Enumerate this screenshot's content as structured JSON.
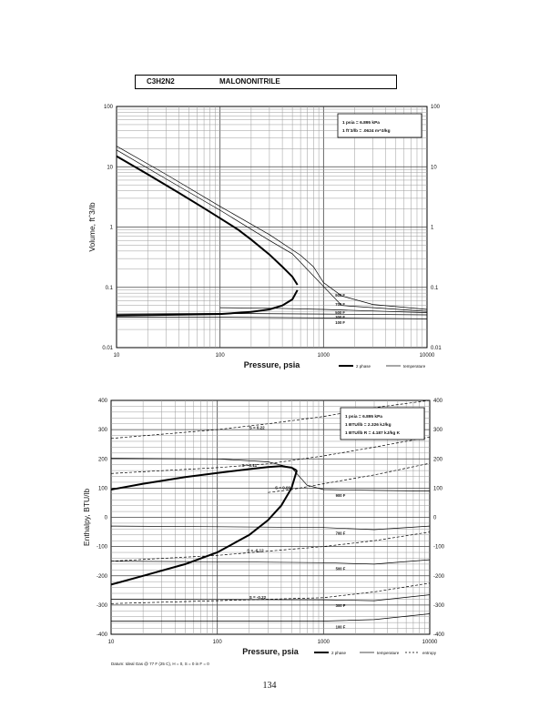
{
  "header": {
    "formula": "C3H2N2",
    "name": "MALONONITRILE"
  },
  "page_number": "134",
  "chart_data": [
    {
      "type": "line",
      "scale": "log-log",
      "xlabel": "Pressure,  psia",
      "ylabel": "Volume, ft^3/lb",
      "xlim": [
        10,
        10000
      ],
      "ylim": [
        0.01,
        100
      ],
      "x_ticks": [
        "10",
        "100",
        "1000",
        "10000"
      ],
      "y_ticks_left": [
        "0.01",
        "0.1",
        "1",
        "10",
        "100"
      ],
      "y_ticks_right": [
        "0.01",
        "0.1",
        "1",
        "10",
        "100"
      ],
      "grid": true,
      "conversion_box": {
        "position": "top-right",
        "lines": [
          "1 psia  =  6.895 kPa",
          "1 ft^3/lb  =  .0624 m^3/kg"
        ]
      },
      "legend": {
        "position": "bottom-right",
        "entries": [
          {
            "style": "thick",
            "label": "2 phase"
          },
          {
            "style": "thin",
            "label": "temperature"
          }
        ]
      },
      "two_phase": {
        "vapor": {
          "x": [
            10,
            20,
            40,
            70,
            100,
            150,
            200,
            300,
            400,
            500,
            560
          ],
          "y": [
            15,
            7.5,
            3.7,
            2.05,
            1.4,
            0.9,
            0.62,
            0.35,
            0.22,
            0.15,
            0.11
          ]
        },
        "liquid": {
          "x": [
            10,
            30,
            100,
            200,
            300,
            400,
            500,
            560
          ],
          "y": [
            0.034,
            0.035,
            0.036,
            0.039,
            0.043,
            0.05,
            0.063,
            0.09
          ]
        }
      },
      "isotherms": [
        {
          "label": "900 F",
          "x": [
            10,
            30,
            100,
            300,
            600,
            800,
            1000,
            1500,
            3000,
            10000
          ],
          "y": [
            22,
            7.5,
            2.2,
            0.75,
            0.34,
            0.22,
            0.12,
            0.072,
            0.052,
            0.043
          ]
        },
        {
          "label": "700 F",
          "x": [
            10,
            30,
            100,
            300,
            500,
            1500,
            10000
          ],
          "y": [
            19,
            6.3,
            1.9,
            0.6,
            0.36,
            0.05,
            0.04
          ]
        },
        {
          "label": "500 F",
          "x": [
            100,
            300,
            1000,
            10000
          ],
          "y": [
            0.046,
            0.045,
            0.043,
            0.038
          ]
        },
        {
          "label": "300 F",
          "x": [
            10,
            100,
            1000,
            10000
          ],
          "y": [
            0.036,
            0.037,
            0.036,
            0.035
          ]
        },
        {
          "label": "100 F",
          "x": [
            10,
            100,
            1000,
            10000
          ],
          "y": [
            0.032,
            0.032,
            0.031,
            0.03
          ]
        }
      ]
    },
    {
      "type": "line",
      "scale": "log-x",
      "xlabel": "Pressure,  psia",
      "ylabel": "Enthalpy, BTU/lb",
      "xlim": [
        10,
        10000
      ],
      "ylim": [
        -400,
        400
      ],
      "x_ticks": [
        "10",
        "100",
        "1000",
        "10000"
      ],
      "y_ticks_left": [
        "-400",
        "-300",
        "-200",
        "-100",
        "0",
        "100",
        "200",
        "300",
        "400"
      ],
      "y_ticks_right": [
        "-400",
        "-300",
        "-200",
        "-100",
        "0",
        "100",
        "200",
        "300",
        "400"
      ],
      "grid": true,
      "conversion_box": {
        "position": "top-right",
        "lines": [
          "1 psia  =  6.895 kPa",
          "1 BTU/lb  =  2.326 kJ/kg",
          "1 BTU/lb R  =  4.187 kJ/kg K"
        ]
      },
      "footnote": "Datum: Ideal Gas @ 77 F (25 C),  H = 0,  S = 0 in F = 0",
      "legend": {
        "position": "bottom-right",
        "entries": [
          {
            "style": "thick",
            "label": "2 phase"
          },
          {
            "style": "thin",
            "label": "temperature"
          },
          {
            "style": "dashed",
            "label": "entropy"
          }
        ]
      },
      "two_phase": {
        "vapor": {
          "x": [
            10,
            20,
            50,
            100,
            200,
            300,
            400,
            500,
            560
          ],
          "y": [
            95,
            115,
            138,
            152,
            165,
            172,
            175,
            170,
            160
          ]
        },
        "liquid": {
          "x": [
            10,
            20,
            50,
            100,
            200,
            300,
            400,
            500,
            560
          ],
          "y": [
            -230,
            -200,
            -160,
            -120,
            -60,
            -10,
            40,
            100,
            160
          ]
        }
      },
      "isotherms": [
        {
          "label": "900 F",
          "x": [
            10,
            100,
            300,
            500,
            700,
            1000,
            3000,
            10000
          ],
          "y": [
            202,
            200,
            190,
            170,
            110,
            95,
            92,
            90
          ]
        },
        {
          "label": "700 F",
          "x": [
            10,
            100,
            1000,
            3000,
            10000
          ],
          "y": [
            -30,
            -32,
            -35,
            -42,
            -30
          ]
        },
        {
          "label": "500 F",
          "x": [
            10,
            100,
            1000,
            3000,
            10000
          ],
          "y": [
            -150,
            -152,
            -155,
            -160,
            -145
          ]
        },
        {
          "label": "300 F",
          "x": [
            10,
            100,
            1000,
            3000,
            10000
          ],
          "y": [
            -280,
            -281,
            -282,
            -285,
            -265
          ]
        },
        {
          "label": "100 F",
          "x": [
            10,
            100,
            1000,
            3000,
            10000
          ],
          "y": [
            -355,
            -355,
            -355,
            -350,
            -330
          ]
        }
      ],
      "entropy_lines": [
        {
          "label": "S = 0.22",
          "x": [
            10,
            100,
            300,
            1000,
            3000,
            10000
          ],
          "y": [
            270,
            300,
            320,
            345,
            375,
            400
          ]
        },
        {
          "label": "S = 0.11",
          "x": [
            10,
            100,
            300,
            1000,
            3000,
            10000
          ],
          "y": [
            150,
            170,
            183,
            210,
            240,
            275
          ]
        },
        {
          "label": "S = 0.00",
          "x": [
            300,
            500,
            1000,
            3000,
            10000
          ],
          "y": [
            85,
            95,
            115,
            145,
            185
          ]
        },
        {
          "label": "S = -0.12",
          "x": [
            10,
            100,
            1000,
            3000,
            10000
          ],
          "y": [
            -150,
            -130,
            -100,
            -80,
            -50
          ]
        },
        {
          "label": "S = -0.22",
          "x": [
            10,
            100,
            1000,
            3000,
            10000
          ],
          "y": [
            -295,
            -285,
            -275,
            -255,
            -225
          ]
        }
      ]
    }
  ]
}
